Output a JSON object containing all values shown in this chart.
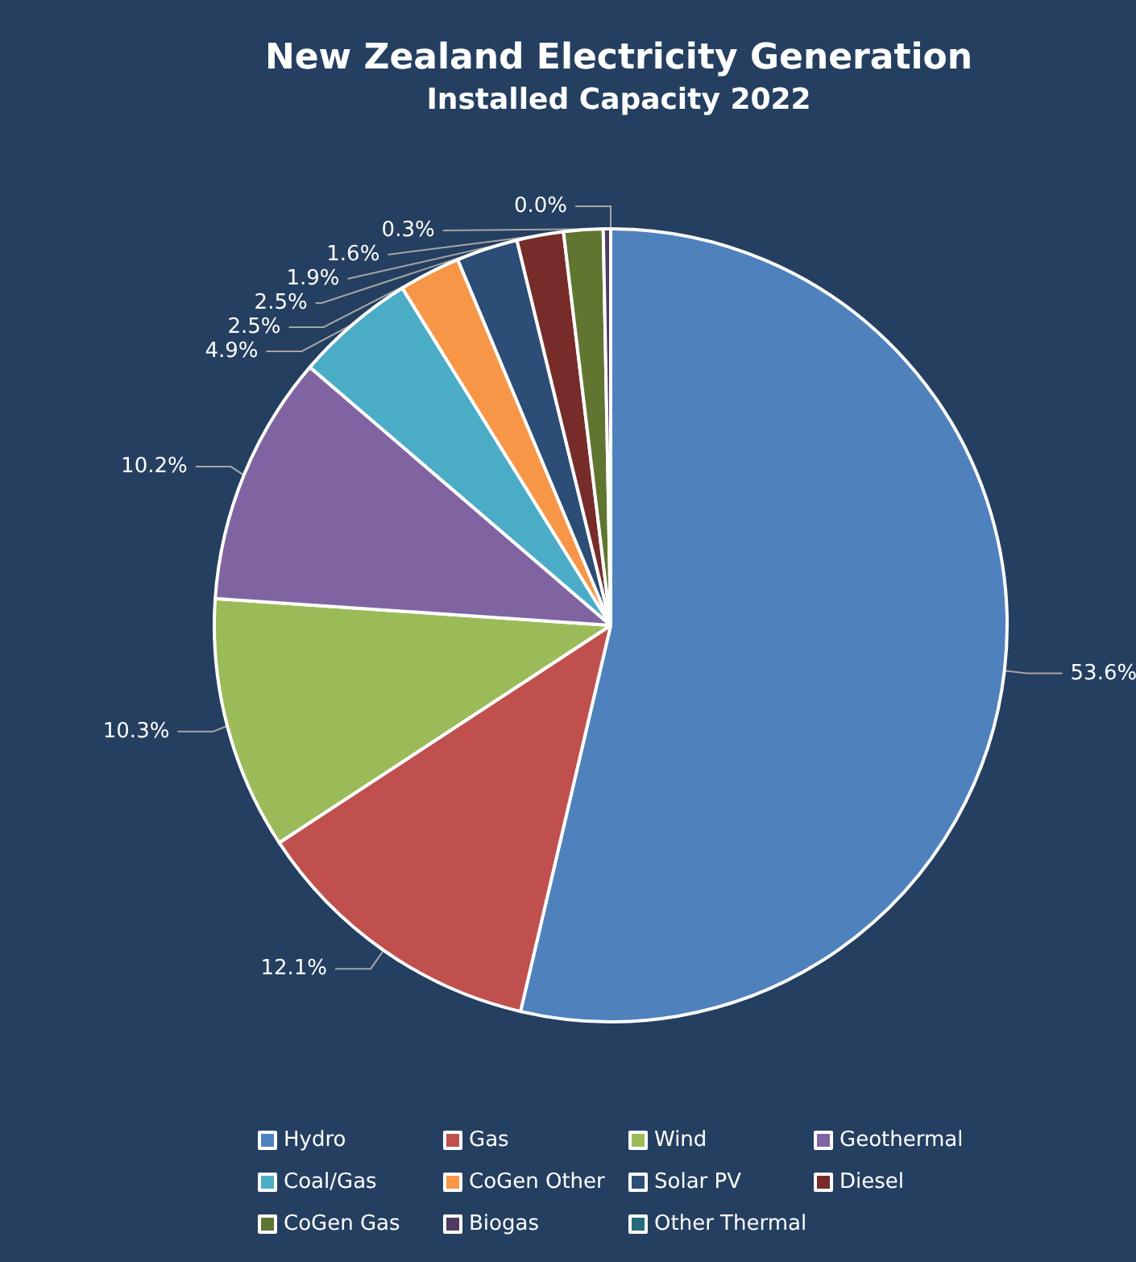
{
  "chart_data": {
    "type": "pie",
    "title": "New Zealand Electricity Generation",
    "subtitle": "Installed Capacity 2022",
    "categories": [
      "Hydro",
      "Gas",
      "Wind",
      "Geothermal",
      "Coal/Gas",
      "CoGen Other",
      "Solar PV",
      "Diesel",
      "CoGen Gas",
      "Biogas",
      "Other Thermal"
    ],
    "values": [
      53.6,
      12.1,
      10.3,
      10.2,
      4.9,
      2.5,
      2.5,
      1.9,
      1.6,
      0.3,
      0.0
    ],
    "colors": [
      "#4f81bd",
      "#c0504d",
      "#9bbb59",
      "#8064a2",
      "#4bacc6",
      "#f79646",
      "#2c4d75",
      "#772c2a",
      "#5f7530",
      "#4d3b62",
      "#276a7c"
    ],
    "value_labels": [
      "53.6%",
      "12.1%",
      "10.3%",
      "10.2%",
      "4.9%",
      "2.5%",
      "2.5%",
      "1.9%",
      "1.6%",
      "0.3%",
      "0.0%"
    ],
    "legend": "bottom"
  }
}
